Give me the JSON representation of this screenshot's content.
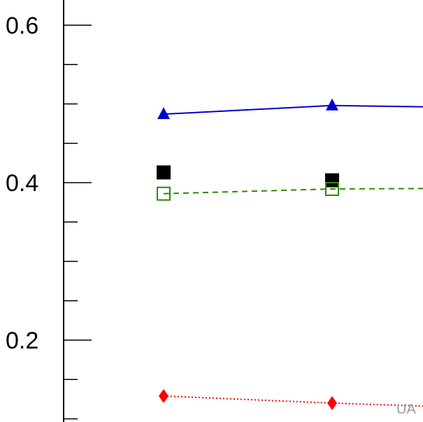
{
  "chart_data": {
    "type": "line",
    "title": "",
    "xlabel": "",
    "ylabel": "",
    "ylim": [
      0.096,
      0.632
    ],
    "yticks_major": [
      0.2,
      0.4,
      0.6
    ],
    "yticks_major_labels": [
      "0.2",
      "0.4",
      "0.6"
    ],
    "yticks_minor": [
      0.1,
      0.15,
      0.25,
      0.3,
      0.35,
      0.45,
      0.5,
      0.55
    ],
    "x": [
      1,
      2,
      3
    ],
    "grid": false,
    "series": [
      {
        "values": [
          0.487,
          0.498,
          0.495
        ],
        "color": "#0000cc",
        "marker": "triangle-filled",
        "line": "solid"
      },
      {
        "values": [
          0.413,
          0.403,
          null
        ],
        "color": "#000000",
        "marker": "square-filled",
        "line": "none"
      },
      {
        "values": [
          0.386,
          0.392,
          0.393
        ],
        "color": "#2e8b00",
        "marker": "square-open",
        "line": "dashed"
      },
      {
        "values": [
          0.129,
          0.12,
          0.113
        ],
        "color": "#ff0000",
        "marker": "diamond-filled",
        "line": "dotted"
      }
    ]
  },
  "watermark": "UA"
}
